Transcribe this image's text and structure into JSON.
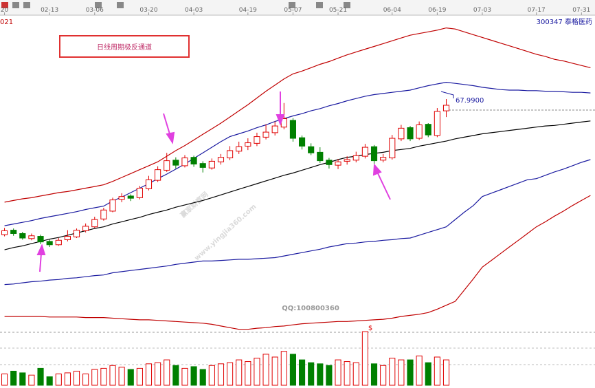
{
  "chart_data": {
    "type": "candlestick",
    "title": "日线周期极反通道",
    "stock": "300347 泰格医药",
    "code_fragment": "021",
    "price_label": "67.9900",
    "watermark": "赢家财富网",
    "watermark_url": "www.yingjia360.com",
    "qq": "QQ:100800360",
    "volume_note": "$",
    "up_color": "#e00000",
    "down_color": "#008000",
    "ylim": [
      26.5,
      82
    ],
    "volume_ylim": [
      0,
      100
    ],
    "categories": [
      "20",
      null,
      null,
      null,
      null,
      "02-13",
      null,
      null,
      null,
      null,
      "03-06",
      null,
      null,
      null,
      null,
      null,
      "03-20",
      null,
      null,
      null,
      null,
      "04-03",
      null,
      null,
      null,
      null,
      null,
      "04-19",
      null,
      null,
      null,
      null,
      "05-07",
      null,
      null,
      null,
      null,
      "05-21",
      null,
      null,
      null,
      null,
      null,
      "06-04",
      null,
      null,
      null,
      null,
      "06-19",
      null,
      null,
      null,
      null,
      "07-03",
      null,
      null,
      null,
      null,
      null,
      "07-17",
      null,
      null,
      null,
      null,
      "07-31",
      null
    ],
    "open": [
      43.8,
      44.6,
      44.0,
      43.1,
      43.5,
      42.6,
      42.0,
      42.9,
      43.4,
      44.5,
      45.2,
      46.6,
      48.0,
      50.1,
      50.7,
      50.4,
      52.0,
      53.5,
      55.3,
      57.1,
      56.1,
      57.6,
      56.5,
      55.7,
      56.8,
      57.5,
      58.7,
      59.6,
      60.1,
      61.2,
      62.0,
      63.0,
      64.2,
      61.1,
      59.5,
      58.5,
      57.1,
      56.2,
      56.9,
      57.1,
      57.8,
      59.5,
      57.1,
      57.5,
      60.9,
      62.9,
      61.0,
      63.5,
      61.5,
      65.9,
      null,
      null,
      null,
      null,
      null,
      null,
      null,
      null,
      null,
      null,
      null,
      null,
      null,
      null,
      null,
      null
    ],
    "high": [
      45.0,
      44.9,
      44.3,
      44.0,
      43.8,
      42.9,
      43.2,
      44.6,
      44.9,
      45.8,
      47.0,
      48.6,
      50.4,
      51.2,
      51.0,
      52.5,
      54.3,
      56.0,
      58.4,
      57.6,
      58.0,
      57.9,
      56.9,
      57.4,
      58.2,
      59.6,
      60.4,
      61.0,
      62.0,
      63.5,
      64.0,
      67.3,
      64.6,
      61.5,
      60.1,
      59.4,
      57.5,
      57.3,
      57.8,
      58.6,
      60.0,
      59.8,
      58.2,
      61.6,
      63.4,
      63.2,
      64.0,
      63.7,
      66.4,
      68.0,
      null,
      null,
      null,
      null,
      null,
      null,
      null,
      null,
      null,
      null,
      null,
      null,
      null,
      null,
      null,
      null
    ],
    "low": [
      43.5,
      43.6,
      42.9,
      42.8,
      42.1,
      41.6,
      41.8,
      42.6,
      43.2,
      44.2,
      45.0,
      46.3,
      47.8,
      49.6,
      49.8,
      50.1,
      51.7,
      53.2,
      55.0,
      55.6,
      55.8,
      55.9,
      54.9,
      55.4,
      56.3,
      57.1,
      58.2,
      58.9,
      59.6,
      60.8,
      61.5,
      62.6,
      60.4,
      59.0,
      58.0,
      56.6,
      55.6,
      55.5,
      56.3,
      56.7,
      57.4,
      56.4,
      56.7,
      57.2,
      60.5,
      60.5,
      60.7,
      61.2,
      61.2,
      64.8,
      null,
      null,
      null,
      null,
      null,
      null,
      null,
      null,
      null,
      null,
      null,
      null,
      null,
      null,
      null,
      null
    ],
    "close": [
      44.5,
      44.0,
      43.2,
      43.6,
      42.5,
      42.0,
      42.8,
      43.5,
      44.6,
      45.3,
      46.5,
      48.2,
      50.0,
      50.6,
      50.3,
      52.1,
      53.6,
      55.4,
      57.0,
      56.2,
      57.5,
      56.4,
      55.8,
      56.9,
      57.6,
      58.8,
      59.5,
      60.2,
      61.3,
      62.1,
      63.2,
      64.5,
      61.0,
      59.6,
      58.4,
      57.0,
      56.3,
      56.8,
      57.2,
      57.9,
      59.4,
      57.0,
      57.6,
      61.0,
      62.8,
      60.9,
      63.4,
      61.6,
      65.8,
      66.9,
      null,
      null,
      null,
      null,
      null,
      null,
      null,
      null,
      null,
      null,
      null,
      null,
      null,
      null,
      null,
      null
    ],
    "volume": [
      20,
      25,
      22,
      18,
      30,
      15,
      20,
      22,
      25,
      20,
      28,
      30,
      35,
      32,
      28,
      30,
      38,
      40,
      45,
      35,
      30,
      33,
      28,
      35,
      38,
      40,
      45,
      42,
      48,
      55,
      50,
      60,
      55,
      45,
      40,
      38,
      35,
      45,
      42,
      40,
      95,
      38,
      35,
      48,
      45,
      45,
      52,
      40,
      50,
      45,
      null,
      null,
      null,
      null,
      null,
      null,
      null,
      null,
      null,
      null,
      null,
      null,
      null,
      null,
      null,
      null
    ],
    "bands": [
      {
        "color": "#c00000",
        "values": [
          49.6,
          49.9,
          50.2,
          50.4,
          50.7,
          51.0,
          51.3,
          51.5,
          51.8,
          52.1,
          52.4,
          52.7,
          53.3,
          54.0,
          54.7,
          55.4,
          56.1,
          56.8,
          57.8,
          58.8,
          59.7,
          60.7,
          61.7,
          62.7,
          63.7,
          64.8,
          65.9,
          67.0,
          68.2,
          69.4,
          70.5,
          71.6,
          72.5,
          73.0,
          73.6,
          74.2,
          74.7,
          75.3,
          75.9,
          76.4,
          76.9,
          77.4,
          77.9,
          78.4,
          78.9,
          79.4,
          79.7,
          80.0,
          80.3,
          80.7,
          80.5,
          80.0,
          79.5,
          79.0,
          78.5,
          78.0,
          77.5,
          77.0,
          76.5,
          76.0,
          75.6,
          75.1,
          74.8,
          74.4,
          74.0,
          73.6
        ]
      },
      {
        "color": "#1a1aa0",
        "values": [
          45.4,
          45.7,
          46.0,
          46.3,
          46.7,
          47.0,
          47.3,
          47.6,
          47.9,
          48.3,
          48.6,
          48.9,
          49.8,
          50.5,
          51.3,
          52.1,
          52.9,
          53.8,
          54.6,
          55.5,
          56.4,
          57.4,
          58.4,
          59.4,
          60.4,
          61.3,
          61.8,
          62.3,
          62.9,
          63.4,
          64.0,
          64.5,
          65.0,
          65.4,
          65.9,
          66.3,
          66.8,
          67.2,
          67.7,
          68.1,
          68.5,
          68.8,
          69.0,
          69.2,
          69.4,
          69.6,
          70.0,
          70.4,
          70.7,
          71.0,
          70.8,
          70.6,
          70.4,
          70.1,
          69.9,
          69.7,
          69.6,
          69.6,
          69.5,
          69.5,
          69.4,
          69.4,
          69.3,
          69.2,
          69.2,
          69.1
        ]
      },
      {
        "color": "#000000",
        "values": [
          41.1,
          41.5,
          41.8,
          42.2,
          42.6,
          43.0,
          43.3,
          43.7,
          44.1,
          44.5,
          44.9,
          45.2,
          45.7,
          46.1,
          46.5,
          46.9,
          47.4,
          47.8,
          48.2,
          48.7,
          49.1,
          49.5,
          49.9,
          50.4,
          50.9,
          51.4,
          51.9,
          52.4,
          52.9,
          53.4,
          53.9,
          54.4,
          54.8,
          55.3,
          55.8,
          56.3,
          56.7,
          57.2,
          57.6,
          57.8,
          58.1,
          58.3,
          58.5,
          58.8,
          59.0,
          59.2,
          59.6,
          59.9,
          60.2,
          60.5,
          60.9,
          61.2,
          61.5,
          61.8,
          62.0,
          62.2,
          62.4,
          62.6,
          62.8,
          63.0,
          63.2,
          63.3,
          63.5,
          63.7,
          63.9,
          64.1
        ]
      },
      {
        "color": "#1a1aa0",
        "values": [
          34.9,
          35.0,
          35.2,
          35.4,
          35.5,
          35.7,
          35.8,
          36.0,
          36.1,
          36.3,
          36.5,
          36.6,
          37.0,
          37.2,
          37.4,
          37.6,
          37.8,
          38.0,
          38.2,
          38.5,
          38.7,
          38.9,
          39.1,
          39.1,
          39.2,
          39.3,
          39.4,
          39.4,
          39.5,
          39.6,
          39.7,
          40.0,
          40.3,
          40.6,
          40.9,
          41.2,
          41.6,
          41.9,
          42.2,
          42.3,
          42.5,
          42.6,
          42.8,
          42.9,
          43.1,
          43.2,
          43.7,
          44.2,
          44.7,
          45.2,
          46.5,
          47.8,
          49.0,
          50.6,
          51.2,
          51.8,
          52.4,
          53.0,
          53.6,
          53.8,
          54.4,
          55.0,
          55.5,
          56.1,
          56.7,
          57.2
        ]
      },
      {
        "color": "#c00000",
        "values": [
          29.2,
          29.2,
          29.2,
          29.2,
          29.2,
          29.1,
          29.1,
          29.1,
          29.1,
          29.0,
          29.0,
          29.0,
          28.9,
          28.8,
          28.7,
          28.6,
          28.6,
          28.5,
          28.4,
          28.3,
          28.2,
          28.1,
          28.0,
          27.8,
          27.5,
          27.2,
          26.9,
          26.9,
          27.1,
          27.2,
          27.4,
          27.5,
          27.7,
          27.9,
          28.0,
          28.1,
          28.2,
          28.3,
          28.3,
          28.4,
          28.5,
          28.6,
          28.7,
          28.9,
          29.2,
          29.4,
          29.6,
          29.9,
          30.5,
          31.2,
          31.9,
          33.9,
          35.9,
          38.0,
          39.2,
          40.4,
          41.6,
          42.8,
          44.0,
          45.2,
          46.1,
          47.1,
          48.0,
          49.0,
          49.9,
          50.8
        ]
      }
    ]
  }
}
